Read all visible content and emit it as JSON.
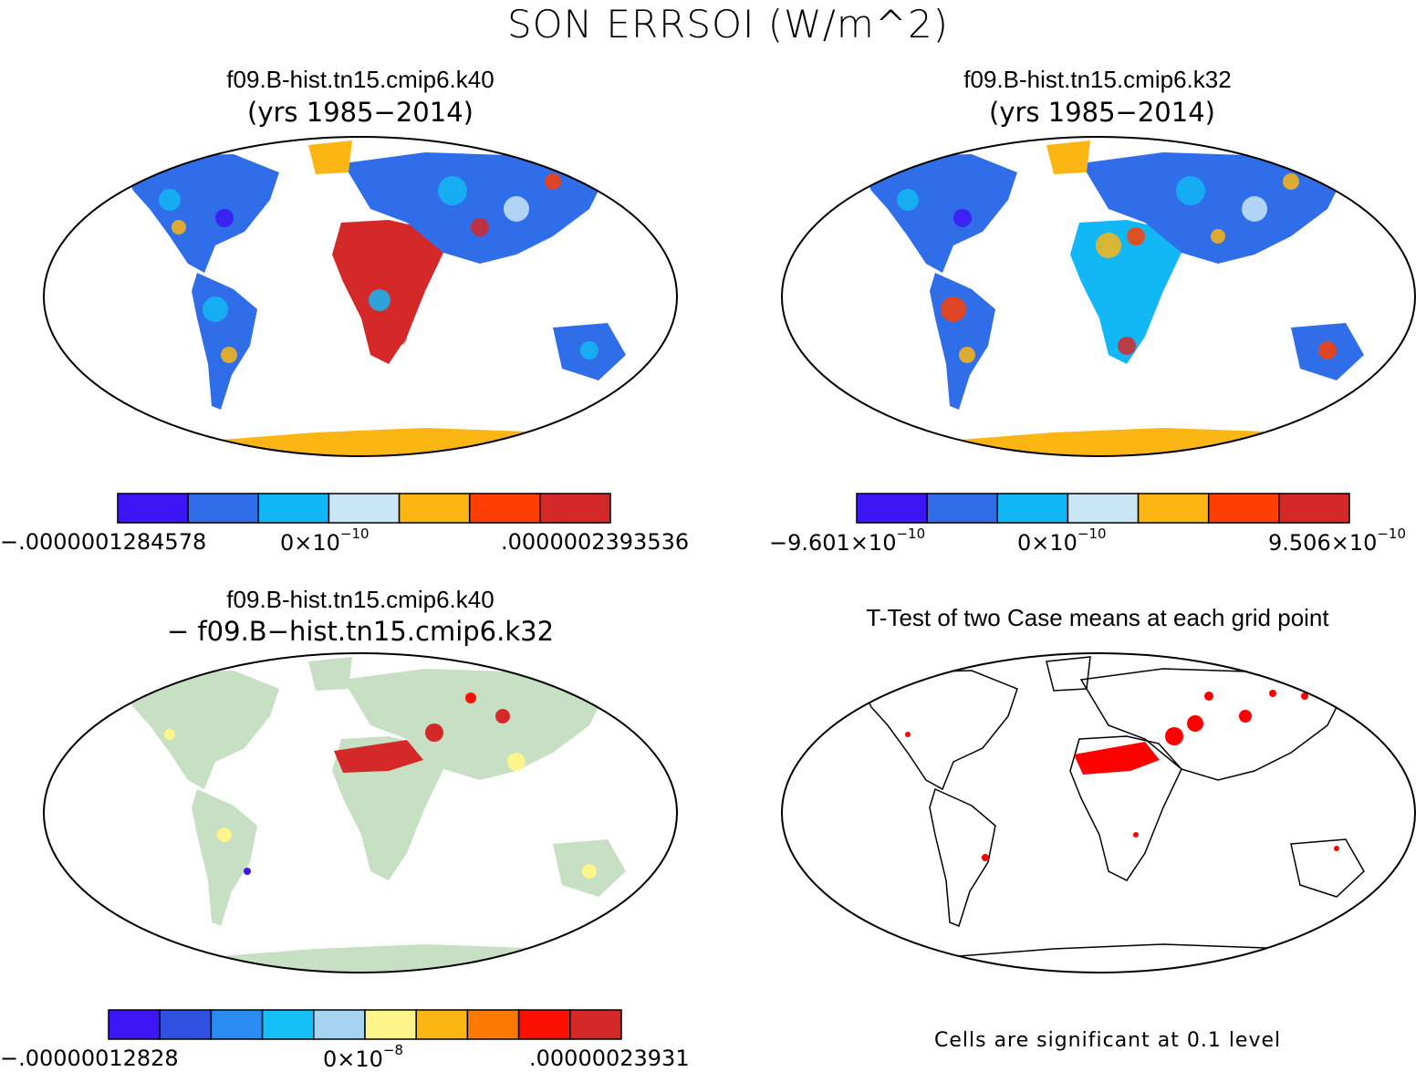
{
  "title": "SON ERRSOI (W/m^2)",
  "panels": [
    {
      "id": "k40",
      "title": "f09.B-hist.tn15.cmip6.k40",
      "subtitle": "(yrs 1985−2014)",
      "colorbar": {
        "colors": [
          "#3d16f5",
          "#2f6ee8",
          "#12b8f5",
          "#c8e6f6",
          "#fbb614",
          "#fd3f04",
          "#d52828"
        ],
        "label_min": "−.0000001284578",
        "label_mid": "0×10",
        "label_mid_exp": "−10",
        "label_max": ".0000002393536"
      }
    },
    {
      "id": "k32",
      "title": "f09.B-hist.tn15.cmip6.k32",
      "subtitle": "(yrs 1985−2014)",
      "colorbar": {
        "colors": [
          "#3d16f5",
          "#2f6ee8",
          "#12b8f5",
          "#c8e6f6",
          "#fbb614",
          "#fd3f04",
          "#d52828"
        ],
        "label_min": "−9.601×10",
        "label_min_exp": "−10",
        "label_mid": "0×10",
        "label_mid_exp": "−10",
        "label_max": "9.506×10",
        "label_max_exp": "−10"
      }
    },
    {
      "id": "diff",
      "title": "f09.B-hist.tn15.cmip6.k40",
      "subtitle": "− f09.B−hist.tn15.cmip6.k32",
      "colorbar": {
        "colors": [
          "#3d16f5",
          "#2f50e0",
          "#2a8cf2",
          "#14c0f5",
          "#a6d3ef",
          "#fdf48a",
          "#fbb614",
          "#fc7904",
          "#fd1004",
          "#d52828"
        ],
        "label_min": "−.00000012828",
        "label_mid": "0×10",
        "label_mid_exp": "−8",
        "label_max": ".00000023931"
      }
    },
    {
      "id": "ttest",
      "title": "T-Test of two Case means at each grid point",
      "note": "Cells are significant at 0.1 level"
    }
  ]
}
